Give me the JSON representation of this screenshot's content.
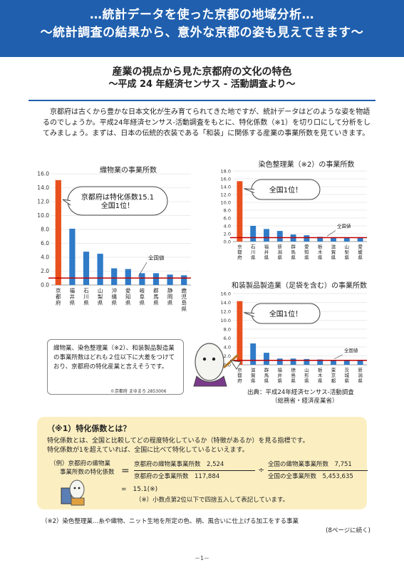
{
  "banner": {
    "line1": "…統計データを使った京都の地域分析…",
    "line2": "～統計調査の結果から、意外な京都の姿も見えてきます～"
  },
  "headline": {
    "title": "産業の視点から見た京都府の文化の特色",
    "subtitle": "～平成 24 年経済センサス - 活動調査より～"
  },
  "intro": "京都府は古くから豊かな日本文化が生み育てられてきた地ですが、統計データはどのような姿を物語るのでしょうか。平成24年経済センサス-活動調査をもとに、特化係数（※1）を切り口にして分析をしてみましょう。まずは、日本の伝統的衣装である「和装」に関係する産業の事業所数を見ていきます。",
  "charts": {
    "textile": {
      "title": "織物業の事業所数",
      "callout": [
        "京都府は特化係数15.1",
        "全国1位！"
      ],
      "refLabel": "全国値"
    },
    "dyeing": {
      "title": "染色整理業（※2）の事業所数",
      "callout": [
        "全国1位！"
      ],
      "refLabel": "全国値"
    },
    "kimono": {
      "title": "和装製品製造業（足袋を含む）の事業所数",
      "callout": [
        "全国1位！"
      ],
      "refLabel": "全国値"
    }
  },
  "chart_data": [
    {
      "type": "bar",
      "title": "織物業の事業所数",
      "categories": [
        "京都府",
        "福井県",
        "石川県",
        "山梨県",
        "沖縄県",
        "愛知県",
        "岐阜県",
        "群馬県",
        "静岡県",
        "鹿児島県"
      ],
      "values": [
        15.1,
        8.1,
        4.8,
        4.5,
        2.4,
        2.3,
        1.7,
        1.7,
        1.5,
        1.4
      ],
      "ylim": [
        0,
        16
      ],
      "yticks": [
        "0.0",
        "2.0",
        "4.0",
        "6.0",
        "8.0",
        "10.0",
        "12.0",
        "14.0",
        "16.0"
      ],
      "reference": 1.0,
      "colors": {
        "highlight": "#e8501e",
        "bar": "#2f7bc8",
        "reference": "#c00000"
      }
    },
    {
      "type": "bar",
      "title": "染色整理業（※2）の事業所数",
      "categories": [
        "京都府",
        "石川県",
        "福井県",
        "新潟県",
        "群馬県",
        "愛知県",
        "栃木県",
        "滋賀県",
        "山梨県",
        "愛媛県"
      ],
      "values": [
        15.4,
        4.0,
        3.2,
        2.7,
        1.8,
        1.6,
        1.2,
        1.1,
        1.0,
        1.0
      ],
      "ylim": [
        0,
        18
      ],
      "yticks": [
        "0.0",
        "2.0",
        "4.0",
        "6.0",
        "8.0",
        "10.0",
        "12.0",
        "14.0",
        "16.0",
        "18.0"
      ],
      "reference": 1.0,
      "colors": {
        "highlight": "#e8501e",
        "bar": "#2f7bc8",
        "reference": "#c00000"
      }
    },
    {
      "type": "bar",
      "title": "和装製品製造業（足袋を含む）の事業所数",
      "categories": [
        "京都府",
        "滋賀県",
        "群馬県",
        "福井県",
        "徳島県",
        "山形県",
        "栃木県",
        "東京都",
        "茨城県",
        "新潟県"
      ],
      "values": [
        14.3,
        4.8,
        2.7,
        1.4,
        1.4,
        1.3,
        1.2,
        1.1,
        1.0,
        0.9
      ],
      "ylim": [
        0,
        16
      ],
      "yticks": [
        "0.0",
        "2.0",
        "4.0",
        "6.0",
        "8.0",
        "10.0",
        "12.0",
        "14.0",
        "16.0"
      ],
      "reference": 1.0,
      "colors": {
        "highlight": "#e8501e",
        "bar": "#2f7bc8",
        "reference": "#c00000"
      }
    }
  ],
  "note": "織物業、染色整理業（※2）、和装製品製造業の事業所数はどれも２位以下に大差をつけており、京都府の特化産業と言えそうです。",
  "copyright": "©京都府 まゆまろ 2853006",
  "source": [
    "出典：平成24年経済センサス-活動調査",
    "（総務省・経済産業省）"
  ],
  "definition": {
    "title": "（※1）特化係数とは？",
    "body1": "特化係数とは、全国と比較してどの程度特化しているか（特徴があるか）を見る指標です。",
    "body2": "特化係数が1を超えていれば、全国に比べて特化しているといえます。",
    "example_label1": "（例）京都府の織物業",
    "example_label2": "事業所数の特化係数",
    "num1": "京都府の織物業事業所数　2,524",
    "den1": "京都府の全事業所数　117,884",
    "num2": "全国の織物業事業所数　7,751",
    "den2": "全国の全事業所数　5,453,635",
    "equals": "=",
    "divide": "÷",
    "result": "=　15.1(※)",
    "rounding": "（※）小数点第2位以下で四捨五入して表記しています。"
  },
  "footnote": {
    "line1": "（※2）染色整理業…糸や織物、ニット生地を所定の色、柄、風合いに仕上げる加工をする事業",
    "line2": "(8ページに続く)"
  },
  "page_number": "－1－"
}
